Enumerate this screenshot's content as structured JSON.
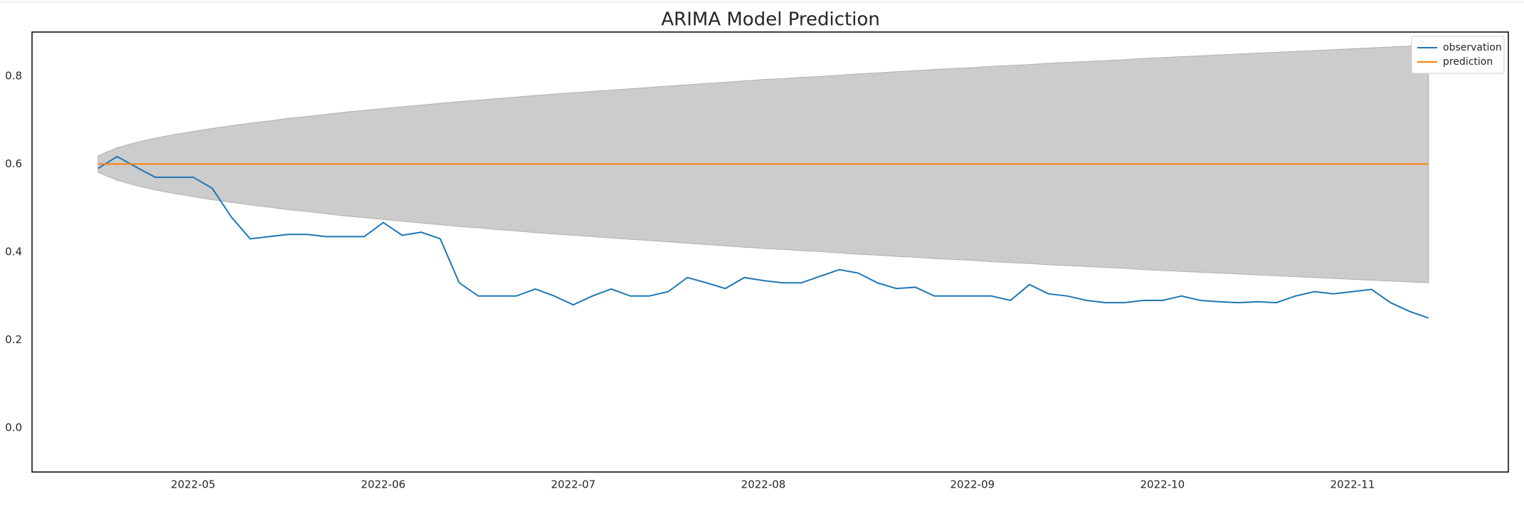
{
  "chart_data": {
    "type": "line",
    "title": "ARIMA Model Prediction",
    "categories": [
      null,
      null,
      null,
      null,
      null,
      "2022-05",
      null,
      null,
      null,
      null,
      null,
      null,
      null,
      null,
      null,
      "2022-06",
      null,
      null,
      null,
      null,
      null,
      null,
      null,
      null,
      null,
      "2022-07",
      null,
      null,
      null,
      null,
      null,
      null,
      null,
      null,
      null,
      "2022-08",
      null,
      null,
      null,
      null,
      null,
      null,
      null,
      null,
      null,
      null,
      "2022-09",
      null,
      null,
      null,
      null,
      null,
      null,
      null,
      null,
      null,
      "2022-10",
      null,
      null,
      null,
      null,
      null,
      null,
      null,
      null,
      null,
      "2022-11",
      null,
      null,
      null,
      null
    ],
    "series": [
      {
        "name": "observation",
        "color": "#1f77b4",
        "values": [
          0.59,
          0.617,
          0.593,
          0.57,
          0.57,
          0.57,
          0.545,
          0.48,
          0.43,
          0.435,
          0.44,
          0.44,
          0.435,
          0.435,
          0.435,
          0.467,
          0.438,
          0.445,
          0.43,
          0.33,
          0.3,
          0.3,
          0.3,
          0.316,
          0.3,
          0.28,
          0.3,
          0.316,
          0.3,
          0.3,
          0.31,
          0.342,
          0.33,
          0.317,
          0.342,
          0.335,
          0.33,
          0.33,
          0.345,
          0.36,
          0.352,
          0.33,
          0.317,
          0.32,
          0.3,
          0.3,
          0.3,
          0.3,
          0.29,
          0.326,
          0.305,
          0.3,
          0.29,
          0.285,
          0.285,
          0.29,
          0.29,
          0.3,
          0.29,
          0.287,
          0.285,
          0.287,
          0.285,
          0.3,
          0.31,
          0.305,
          0.31,
          0.315,
          0.285,
          0.265,
          0.25
        ]
      },
      {
        "name": "prediction",
        "color": "#ff7f0e",
        "values": [
          0.6,
          0.6,
          0.6,
          0.6,
          0.6,
          0.6,
          0.6,
          0.6,
          0.6,
          0.6,
          0.6,
          0.6,
          0.6,
          0.6,
          0.6,
          0.6,
          0.6,
          0.6,
          0.6,
          0.6,
          0.6,
          0.6,
          0.6,
          0.6,
          0.6,
          0.6,
          0.6,
          0.6,
          0.6,
          0.6,
          0.6,
          0.6,
          0.6,
          0.6,
          0.6,
          0.6,
          0.6,
          0.6,
          0.6,
          0.6,
          0.6,
          0.6,
          0.6,
          0.6,
          0.6,
          0.6,
          0.6,
          0.6,
          0.6,
          0.6,
          0.6,
          0.6,
          0.6,
          0.6,
          0.6,
          0.6,
          0.6,
          0.6,
          0.6,
          0.6,
          0.6,
          0.6,
          0.6,
          0.6,
          0.6,
          0.6,
          0.6,
          0.6,
          0.6,
          0.6,
          0.6
        ]
      }
    ],
    "confidence_interval": {
      "color": "#cccccc",
      "upper": [
        0.619,
        0.637,
        0.649,
        0.659,
        0.667,
        0.674,
        0.681,
        0.687,
        0.693,
        0.698,
        0.704,
        0.708,
        0.713,
        0.718,
        0.722,
        0.726,
        0.73,
        0.734,
        0.738,
        0.742,
        0.745,
        0.749,
        0.752,
        0.756,
        0.759,
        0.762,
        0.765,
        0.768,
        0.771,
        0.774,
        0.777,
        0.78,
        0.783,
        0.786,
        0.789,
        0.792,
        0.794,
        0.797,
        0.799,
        0.802,
        0.805,
        0.807,
        0.81,
        0.812,
        0.815,
        0.817,
        0.819,
        0.822,
        0.824,
        0.826,
        0.829,
        0.831,
        0.833,
        0.835,
        0.837,
        0.84,
        0.842,
        0.844,
        0.846,
        0.848,
        0.85,
        0.852,
        0.854,
        0.856,
        0.858,
        0.86,
        0.862,
        0.864,
        0.866,
        0.868,
        0.87
      ],
      "lower": [
        0.581,
        0.563,
        0.551,
        0.541,
        0.533,
        0.526,
        0.519,
        0.513,
        0.507,
        0.502,
        0.496,
        0.492,
        0.487,
        0.482,
        0.478,
        0.474,
        0.47,
        0.466,
        0.462,
        0.458,
        0.455,
        0.451,
        0.448,
        0.444,
        0.441,
        0.438,
        0.435,
        0.432,
        0.429,
        0.426,
        0.423,
        0.42,
        0.417,
        0.414,
        0.411,
        0.408,
        0.406,
        0.403,
        0.401,
        0.398,
        0.395,
        0.393,
        0.39,
        0.388,
        0.385,
        0.383,
        0.381,
        0.378,
        0.376,
        0.374,
        0.371,
        0.369,
        0.367,
        0.365,
        0.363,
        0.36,
        0.358,
        0.356,
        0.354,
        0.352,
        0.35,
        0.348,
        0.346,
        0.344,
        0.342,
        0.34,
        0.338,
        0.336,
        0.334,
        0.332,
        0.33
      ]
    },
    "ylim": [
      -0.1,
      0.9
    ],
    "yticks": [
      {
        "value": 0,
        "label": "0.0"
      },
      0.2,
      0.4,
      0.6,
      0.8
    ],
    "grid": false,
    "legend": "upper right"
  }
}
